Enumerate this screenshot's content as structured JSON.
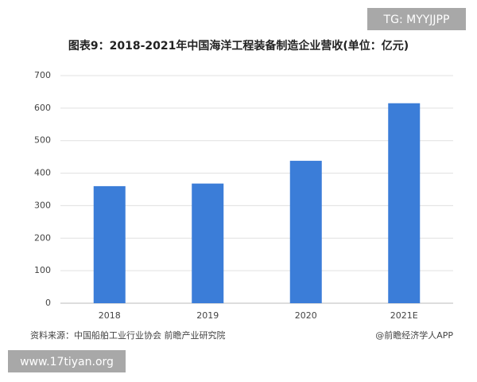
{
  "chart_data": {
    "type": "bar",
    "title": "图表9：2018-2021年中国海洋工程装备制造企业营收(单位：亿元)",
    "categories": [
      "2018",
      "2019",
      "2020",
      "2021E"
    ],
    "values": [
      360,
      368,
      438,
      615
    ],
    "color": "#3b7dd8",
    "ylim": [
      0,
      700
    ],
    "yticks": [
      0,
      100,
      200,
      300,
      400,
      500,
      600,
      700
    ],
    "grid": true,
    "source": "资料来源：中国船舶工业行业协会 前瞻产业研究院",
    "credit": "@前瞻经济学人APP"
  },
  "watermarks": [
    "TG: MYYJJPP",
    "www.17tiyan.org"
  ]
}
